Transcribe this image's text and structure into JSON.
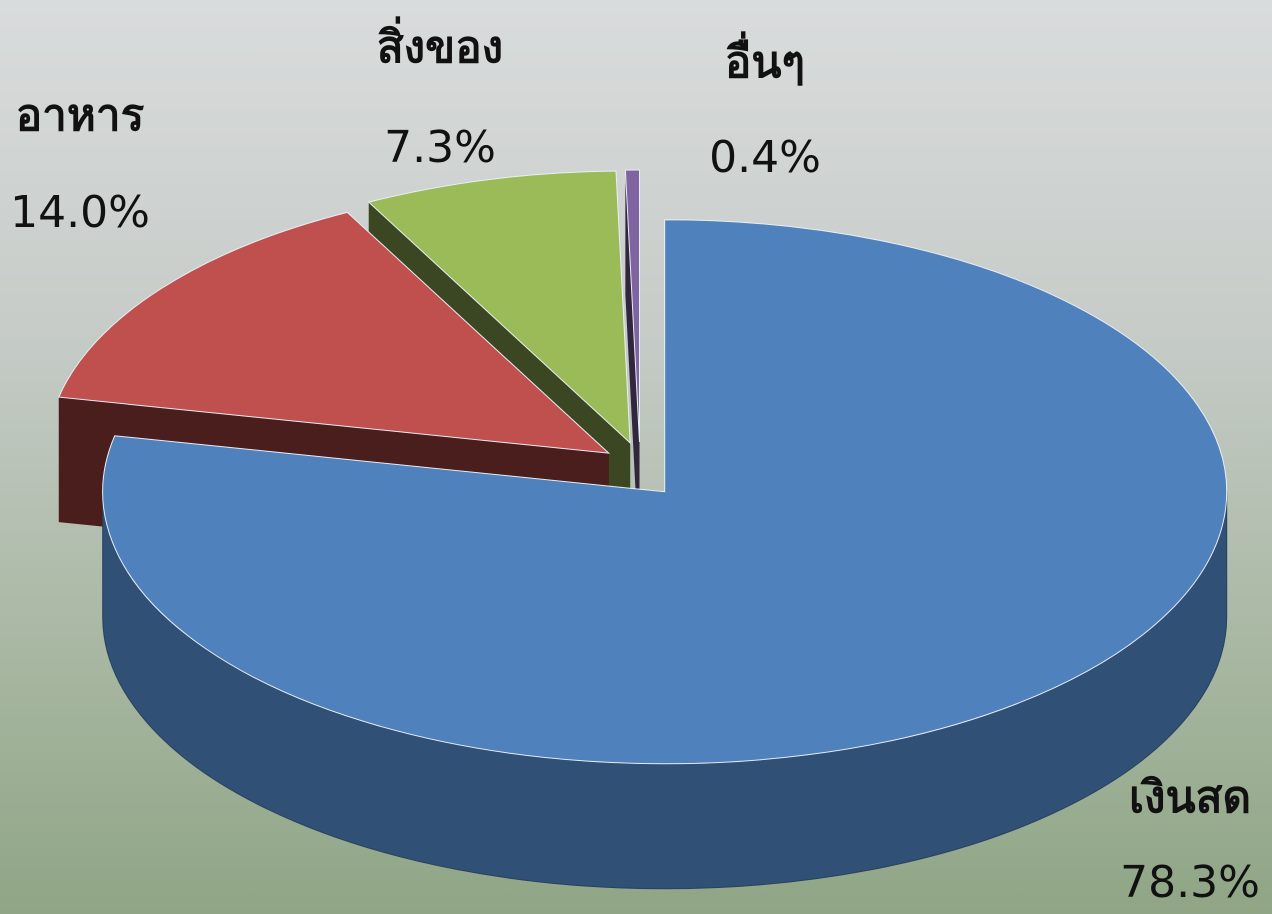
{
  "chart_data": {
    "type": "pie",
    "categories": [
      "เงินสด",
      "อาหาร",
      "สิ่งของ",
      "อื่นๆ"
    ],
    "values": [
      78.3,
      14.0,
      7.3,
      0.4
    ],
    "value_labels": [
      "78.3%",
      "14.0%",
      "7.3%",
      "0.4%"
    ],
    "colors": [
      "#4f81bd",
      "#c0504d",
      "#9bbb59",
      "#8064a2"
    ]
  }
}
